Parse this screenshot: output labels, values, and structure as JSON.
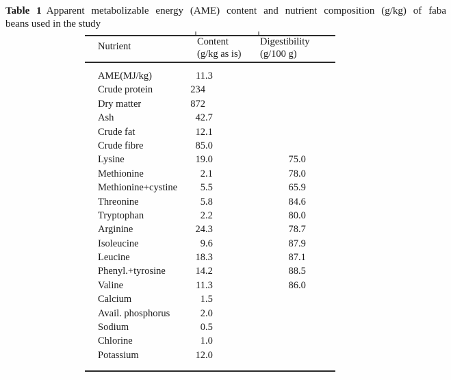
{
  "caption": {
    "label": "Table 1",
    "line1": "Apparent metabolizable energy (AME) content and nutrient composition (g/kg) of faba",
    "line2": "beans used in the study"
  },
  "table": {
    "columns": [
      {
        "name": "Nutrient",
        "unit": ""
      },
      {
        "name": "Content",
        "unit": "(g/kg as is)"
      },
      {
        "name": "Digestibility",
        "unit": "(g/100 g)"
      }
    ],
    "rows": [
      {
        "nutrient": "AME(MJ/kg)",
        "content": "11.3",
        "digestibility": ""
      },
      {
        "nutrient": "Crude protein",
        "content": "234",
        "digestibility": ""
      },
      {
        "nutrient": "Dry matter",
        "content": "872",
        "digestibility": ""
      },
      {
        "nutrient": "Ash",
        "content": "42.7",
        "digestibility": ""
      },
      {
        "nutrient": "Crude fat",
        "content": "12.1",
        "digestibility": ""
      },
      {
        "nutrient": "Crude fibre",
        "content": "85.0",
        "digestibility": ""
      },
      {
        "nutrient": "Lysine",
        "content": "19.0",
        "digestibility": "75.0"
      },
      {
        "nutrient": "Methionine",
        "content": "2.1",
        "digestibility": "78.0"
      },
      {
        "nutrient": "Methionine+cystine",
        "content": "5.5",
        "digestibility": "65.9"
      },
      {
        "nutrient": "Threonine",
        "content": "5.8",
        "digestibility": "84.6"
      },
      {
        "nutrient": "Tryptophan",
        "content": "2.2",
        "digestibility": "80.0"
      },
      {
        "nutrient": "Arginine",
        "content": "24.3",
        "digestibility": "78.7"
      },
      {
        "nutrient": "Isoleucine",
        "content": "9.6",
        "digestibility": "87.9"
      },
      {
        "nutrient": "Leucine",
        "content": "18.3",
        "digestibility": "87.1"
      },
      {
        "nutrient": "Phenyl.+tyrosine",
        "content": "14.2",
        "digestibility": "88.5"
      },
      {
        "nutrient": "Valine",
        "content": "11.3",
        "digestibility": "86.0"
      },
      {
        "nutrient": "Calcium",
        "content": "1.5",
        "digestibility": ""
      },
      {
        "nutrient": "Avail. phosphorus",
        "content": "2.0",
        "digestibility": ""
      },
      {
        "nutrient": "Sodium",
        "content": "0.5",
        "digestibility": ""
      },
      {
        "nutrient": "Chlorine",
        "content": "1.0",
        "digestibility": ""
      },
      {
        "nutrient": "Potassium",
        "content": "12.0",
        "digestibility": ""
      }
    ]
  },
  "colors": {
    "ink": "#1b1b1b",
    "rule": "#2a2a2a",
    "background": "#fefefe"
  }
}
